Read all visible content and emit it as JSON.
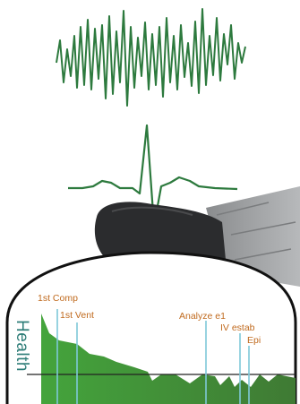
{
  "health": {
    "axis_label": "Health",
    "events": [
      {
        "label": "1st Comp"
      },
      {
        "label": "1st Vent"
      },
      {
        "label": "Analyze e1"
      },
      {
        "label": "IV estab"
      },
      {
        "label": "Epi"
      }
    ]
  },
  "colors": {
    "ecg": "#2d7a3e",
    "health_fill_start": "#44a43c",
    "health_fill_end": "#3f7a34",
    "event_line": "#7ec8d8",
    "event_text": "#c06a1e",
    "axis_text": "#2e7d78"
  }
}
